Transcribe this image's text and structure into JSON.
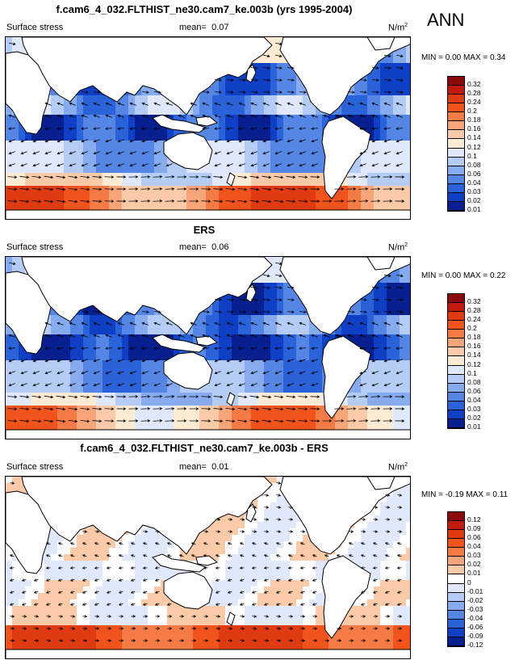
{
  "season": "ANN",
  "panels": [
    {
      "title": "f.cam6_4_032.FLTHIST_ne30.cam7_ke.003b (yrs 1995-2004)",
      "variable": "Surface stress",
      "mean_label": "mean=",
      "mean": "0.07",
      "units": "N/m",
      "units_sup": "2",
      "minmax": "MIN =  0.00 MAX =  0.34",
      "field": "model",
      "levels": [
        "0.32",
        "0.28",
        "0.24",
        "0.2",
        "0.18",
        "0.16",
        "0.14",
        "0.12",
        "0.1",
        "0.08",
        "0.06",
        "0.04",
        "0.03",
        "0.02",
        "0.01"
      ]
    },
    {
      "title": "ERS",
      "variable": "Surface stress",
      "mean_label": "mean=",
      "mean": "0.06",
      "units": "N/m",
      "units_sup": "2",
      "minmax": "MIN =  0.00 MAX =  0.22",
      "field": "obs",
      "levels": [
        "0.32",
        "0.28",
        "0.24",
        "0.2",
        "0.18",
        "0.16",
        "0.14",
        "0.12",
        "0.1",
        "0.08",
        "0.06",
        "0.04",
        "0.03",
        "0.02",
        "0.01"
      ]
    },
    {
      "title": "f.cam6_4_032.FLTHIST_ne30.cam7_ke.003b - ERS",
      "variable": "Surface stress",
      "mean_label": "mean=",
      "mean": "0.01",
      "units": "N/m",
      "units_sup": "2",
      "minmax": "MIN = -0.19 MAX =  0.11",
      "field": "diff",
      "levels": [
        "0.12",
        "0.09",
        "0.06",
        "0.04",
        "0.03",
        "0.02",
        "0.01",
        "0",
        "-0.01",
        "-0.02",
        "-0.03",
        "-0.04",
        "-0.06",
        "-0.09",
        "-0.12"
      ]
    }
  ],
  "colors": {
    "abs_palette": [
      "#8b0a0a",
      "#c21a0c",
      "#e03a12",
      "#f0531c",
      "#f47b45",
      "#f8a57a",
      "#fbcaa8",
      "#fdebd3",
      "#dfe9fb",
      "#b5cdf6",
      "#87abef",
      "#5586e6",
      "#2a62da",
      "#0f3fc4",
      "#08208f"
    ],
    "diff_palette": [
      "#8b0a0a",
      "#c21a0c",
      "#e03a12",
      "#f0531c",
      "#f47b45",
      "#f8a57a",
      "#fbcaa8",
      "#ffffff",
      "#dfe9fb",
      "#b5cdf6",
      "#87abef",
      "#5586e6",
      "#2a62da",
      "#0f3fc4",
      "#08208f"
    ],
    "land": "#ffffff",
    "coast": "#000000",
    "vector": "#000000"
  }
}
